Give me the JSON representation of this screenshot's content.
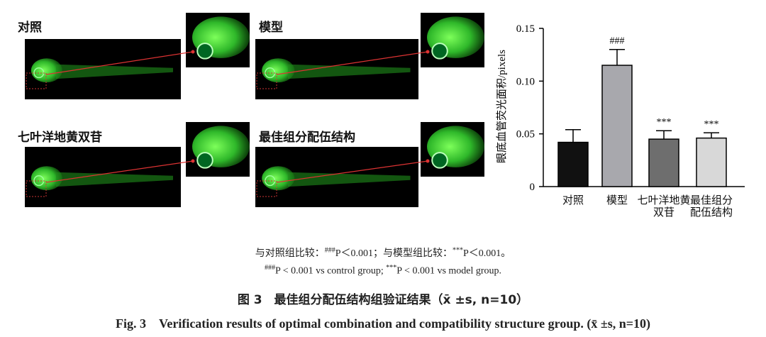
{
  "panels": [
    {
      "label": "对照"
    },
    {
      "label": "模型"
    },
    {
      "label": "七叶洋地黄双苷"
    },
    {
      "label": "最佳组分配伍结构"
    }
  ],
  "chart_data": {
    "type": "bar",
    "y_label": "眼底血管荧光面积/pixels",
    "categories": [
      "对照",
      "模型",
      "七叶洋地黄双苷",
      "最佳组分配伍结构"
    ],
    "values": [
      0.042,
      0.115,
      0.045,
      0.046
    ],
    "errors": [
      0.012,
      0.015,
      0.008,
      0.005
    ],
    "annotations": [
      null,
      "###",
      "***",
      "***"
    ],
    "colors": [
      "#111111",
      "#a8a8ad",
      "#6e6e6e",
      "#d8d8d8"
    ],
    "ylim": [
      0,
      0.15
    ],
    "yticks": [
      0,
      0.05,
      {
        "value": 0.1,
        "label": "0.10"
      },
      0.15
    ]
  },
  "notes": {
    "cn": [
      "与对照组比较：",
      "###",
      "P＜0.001；与模型组比较：",
      "***",
      "P＜0.001。"
    ],
    "en": [
      "###",
      "P < 0.001 vs control group; ",
      "***",
      "P < 0.001 vs model group."
    ]
  },
  "caption": {
    "cn": "图 3　最佳组分配伍结构组验证结果（x̄ ±s, n=10）",
    "en": "Fig. 3　Verification results of optimal combination and compatibility structure group. (x̄ ±s, n=10)"
  }
}
